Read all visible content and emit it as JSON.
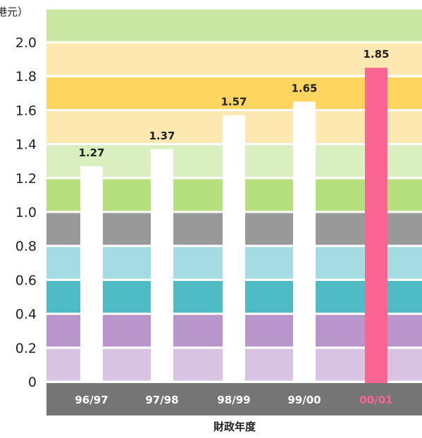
{
  "chart_data": {
    "type": "bar",
    "ylabel": "（十億港元）",
    "xlabel": "財政年度",
    "categories": [
      "96/97",
      "97/98",
      "98/99",
      "99/00",
      "00/01"
    ],
    "values": [
      1.27,
      1.37,
      1.57,
      1.65,
      1.85
    ],
    "value_labels": [
      "1.27",
      "1.37",
      "1.57",
      "1.65",
      "1.85"
    ],
    "ylim": [
      0,
      2.2
    ],
    "yticks": [
      "0",
      "0.2",
      "0.4",
      "0.6",
      "0.8",
      "1.0",
      "1.2",
      "1.4",
      "1.6",
      "1.8",
      "2.0"
    ],
    "grid": true,
    "bar_colors": [
      "#ffffff",
      "#ffffff",
      "#ffffff",
      "#ffffff",
      "#fb6593"
    ],
    "category_label_colors": [
      "#ffffff",
      "#ffffff",
      "#ffffff",
      "#ffffff",
      "#fb6593"
    ],
    "background_bands": [
      "#d8c3e2",
      "#b896cc",
      "#4fbcc5",
      "#a5dce3",
      "#999999",
      "#b6df7e",
      "#d9efc0",
      "#fde8b2",
      "#fdd55f",
      "#fde8b2",
      "#c9e6a3"
    ],
    "x_axis_band_color": "#757575"
  }
}
